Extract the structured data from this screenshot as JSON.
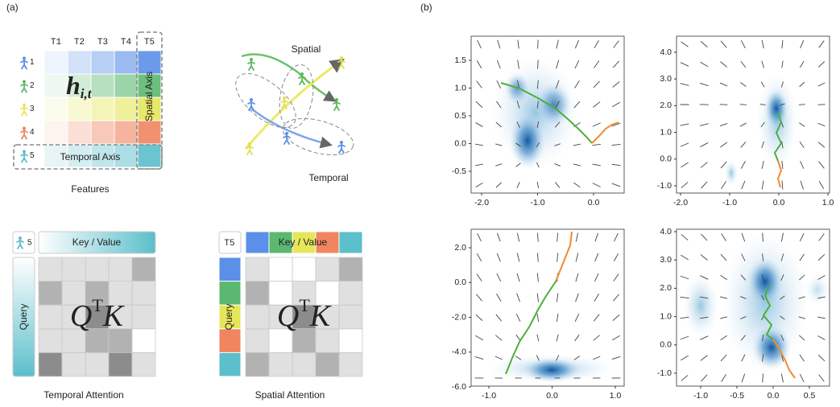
{
  "panel_a": {
    "label": "(a)",
    "features": {
      "columns": [
        "T1",
        "T2",
        "T3",
        "T4",
        "T5"
      ],
      "rows": [
        "1",
        "2",
        "3",
        "4",
        "5"
      ],
      "cell_symbol": "h",
      "cell_subscript": "i,t",
      "spatial_axis": "Spatial Axis",
      "temporal_axis": "Temporal Axis",
      "caption": "Features"
    },
    "interaction": {
      "spatial": "Spatial",
      "temporal": "Temporal"
    },
    "temporal_attention": {
      "agent": "5",
      "key_value": "Key / Value",
      "query": "Query",
      "product": "Q",
      "superscript": "T",
      "product_rest": "K",
      "caption": "Temporal Attention"
    },
    "spatial_attention": {
      "time": "T5",
      "key_value": "Key / Value",
      "query": "Query",
      "product": "Q",
      "superscript": "T",
      "product_rest": "K",
      "caption": "Spatial Attention"
    }
  },
  "panel_b": {
    "label": "(b)",
    "plots": [
      {
        "xticks": [
          "-2.0",
          "-1.0",
          "0.0"
        ],
        "yticks": [
          "1.5",
          "1.0",
          "0.5",
          "0.0",
          "-0.5"
        ]
      },
      {
        "xticks": [
          "-2.0",
          "-1.0",
          "0.0",
          "1.0"
        ],
        "yticks": [
          "4.0",
          "3.0",
          "2.0",
          "1.0",
          "0.0",
          "-1.0"
        ]
      },
      {
        "xticks": [
          "-1.0",
          "0.0",
          "1.0"
        ],
        "yticks": [
          "2.0",
          "0.0",
          "-2.0",
          "-4.0",
          "-6.0"
        ]
      },
      {
        "xticks": [
          "-1.0",
          "-0.5",
          "0.0",
          "0.5"
        ],
        "yticks": [
          "4.0",
          "3.0",
          "2.0",
          "1.0",
          "0.0",
          "-1.0"
        ]
      }
    ]
  }
}
